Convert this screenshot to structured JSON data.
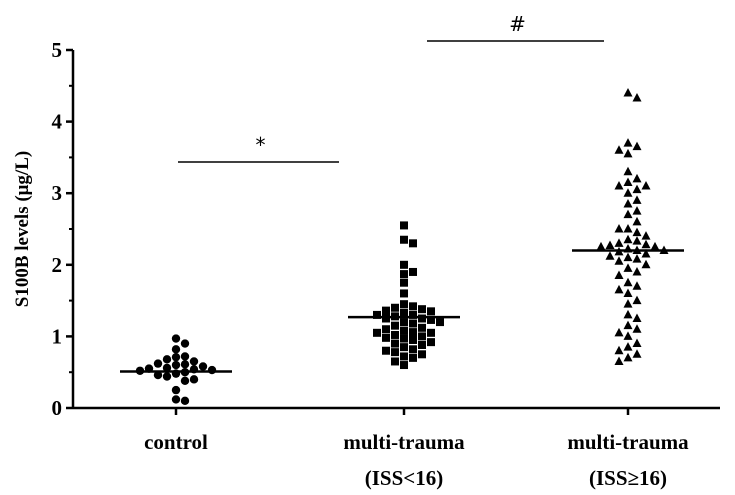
{
  "chart_data": {
    "type": "scatter",
    "title": "",
    "xlabel": "",
    "ylabel": "S100B levels (μg/L)",
    "ylim": [
      0,
      5
    ],
    "yticks": [
      "0",
      "1",
      "2",
      "3",
      "4",
      "5"
    ],
    "grid": false,
    "categories": [
      {
        "line1": "control",
        "line2": ""
      },
      {
        "line1": "multi-trauma",
        "line2": "(ISS<16)"
      },
      {
        "line1": "multi-trauma",
        "line2": "(ISS≥16)"
      }
    ],
    "series": [
      {
        "marker": "circle",
        "mean": 0.51,
        "values": [
          0.97,
          0.9,
          0.82,
          0.72,
          0.71,
          0.68,
          0.65,
          0.62,
          0.61,
          0.6,
          0.58,
          0.56,
          0.55,
          0.54,
          0.53,
          0.52,
          0.5,
          0.48,
          0.46,
          0.44,
          0.4,
          0.38,
          0.25,
          0.12,
          0.1
        ]
      },
      {
        "marker": "square",
        "mean": 1.27,
        "values": [
          2.55,
          2.35,
          2.3,
          2.0,
          1.9,
          1.87,
          1.75,
          1.6,
          1.45,
          1.42,
          1.4,
          1.38,
          1.36,
          1.35,
          1.33,
          1.3,
          1.3,
          1.28,
          1.25,
          1.25,
          1.23,
          1.2,
          1.2,
          1.18,
          1.15,
          1.12,
          1.1,
          1.08,
          1.06,
          1.05,
          1.05,
          1.02,
          1.0,
          0.98,
          0.97,
          0.95,
          0.92,
          0.9,
          0.88,
          0.85,
          0.82,
          0.8,
          0.78,
          0.75,
          0.72,
          0.7,
          0.65,
          0.6
        ]
      },
      {
        "marker": "triangle",
        "mean": 2.2,
        "values": [
          4.4,
          4.33,
          3.7,
          3.65,
          3.6,
          3.55,
          3.3,
          3.2,
          3.15,
          3.1,
          3.1,
          3.05,
          3.0,
          2.9,
          2.85,
          2.75,
          2.7,
          2.6,
          2.5,
          2.5,
          2.45,
          2.4,
          2.35,
          2.33,
          2.3,
          2.28,
          2.27,
          2.25,
          2.25,
          2.22,
          2.2,
          2.2,
          2.18,
          2.15,
          2.12,
          2.1,
          2.08,
          2.05,
          2.0,
          1.95,
          1.9,
          1.85,
          1.75,
          1.7,
          1.65,
          1.6,
          1.5,
          1.45,
          1.3,
          1.25,
          1.15,
          1.1,
          1.05,
          1.0,
          0.9,
          0.85,
          0.8,
          0.75,
          0.7,
          0.65
        ]
      }
    ],
    "annotations": [
      {
        "label": "*",
        "from_category": 0,
        "to_category": 1
      },
      {
        "label": "#",
        "from_category": 1,
        "to_category": 2
      }
    ]
  }
}
